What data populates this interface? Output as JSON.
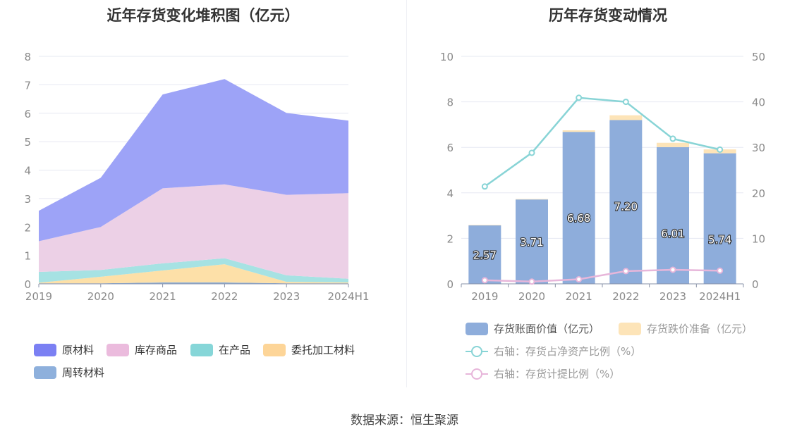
{
  "footer": {
    "source": "数据来源：恒生聚源"
  },
  "chart_data": [
    {
      "type": "area",
      "title": "近年存货变化堆积图（亿元）",
      "x": [
        "2019",
        "2020",
        "2021",
        "2022",
        "2023",
        "2024H1"
      ],
      "y_ticks": [
        "0",
        "1",
        "2",
        "3",
        "4",
        "5",
        "6",
        "7",
        "8"
      ],
      "ylim": [
        0,
        8
      ],
      "stacked": true,
      "grid": true,
      "legend_position": "bottom",
      "series": [
        {
          "name": "周转材料",
          "color": "#8eb0dc",
          "values": [
            0.02,
            0.02,
            0.05,
            0.05,
            0.02,
            0.02
          ]
        },
        {
          "name": "委托加工材料",
          "color": "#fde0a8",
          "values": [
            0.02,
            0.23,
            0.42,
            0.64,
            0.05,
            0.03
          ]
        },
        {
          "name": "在产品",
          "color": "#a6e2e3",
          "values": [
            0.38,
            0.24,
            0.25,
            0.21,
            0.23,
            0.13
          ]
        },
        {
          "name": "库存商品",
          "color": "#ecd0e6",
          "values": [
            1.08,
            1.51,
            2.64,
            2.6,
            2.83,
            3.01
          ]
        },
        {
          "name": "原材料",
          "color": "#9da3f7",
          "values": [
            1.07,
            1.73,
            3.3,
            3.7,
            2.88,
            2.55
          ]
        }
      ],
      "legend": [
        {
          "name": "原材料",
          "color": "#7b80f3"
        },
        {
          "name": "库存商品",
          "color": "#ebbbdd"
        },
        {
          "name": "在产品",
          "color": "#86d6d8"
        },
        {
          "name": "委托加工材料",
          "color": "#fdd598"
        },
        {
          "name": "周转材料",
          "color": "#8eb0dc"
        }
      ]
    },
    {
      "type": "bar",
      "title": "历年存货变动情况",
      "categories": [
        "2019",
        "2020",
        "2021",
        "2022",
        "2023",
        "2024H1"
      ],
      "ylim": [
        0,
        10
      ],
      "y_ticks": [
        "0",
        "2",
        "4",
        "6",
        "8",
        "10"
      ],
      "y2lim": [
        0,
        50
      ],
      "y2_ticks": [
        "0",
        "10",
        "20",
        "30",
        "40",
        "50"
      ],
      "grid": true,
      "legend_position": "bottom",
      "bar_series": [
        {
          "name": "存货账面价值（亿元）",
          "color": "#8eaddb",
          "values": [
            2.57,
            3.71,
            6.68,
            7.2,
            6.01,
            5.74
          ],
          "labels": [
            "2.57",
            "3.71",
            "6.68",
            "7.20",
            "6.01",
            "5.74"
          ]
        },
        {
          "name": "存货跌价准备（亿元）",
          "color": "#fde4b8",
          "values": [
            0.02,
            0.02,
            0.07,
            0.21,
            0.19,
            0.17
          ]
        }
      ],
      "line_series": [
        {
          "name": "右轴：存货占净资产比例（%）",
          "color": "#88d4d6",
          "values": [
            21.4,
            28.8,
            40.9,
            40.0,
            31.9,
            29.5
          ]
        },
        {
          "name": "右轴：存货计提比例（%）",
          "color": "#e7b6da",
          "values": [
            0.8,
            0.5,
            1.0,
            2.8,
            3.1,
            2.9
          ]
        }
      ]
    }
  ]
}
